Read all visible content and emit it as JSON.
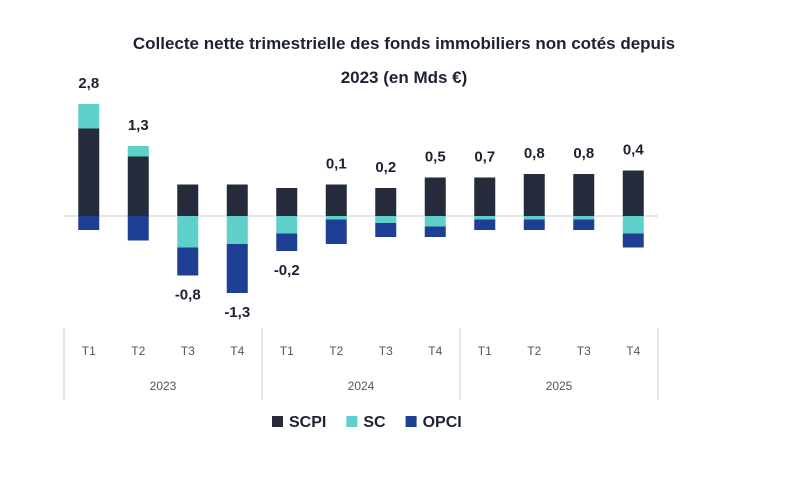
{
  "chart_data": {
    "type": "stacked-bar",
    "title": "Collecte nette trimestrielle des fonds immobiliers non cotés depuis 2023 (en Mds €)",
    "categories": [
      "T1",
      "T2",
      "T3",
      "T4",
      "T1",
      "T2",
      "T3",
      "T4",
      "T1",
      "T2",
      "T3",
      "T4"
    ],
    "groups": [
      "2023",
      "2024",
      "2025"
    ],
    "series": [
      {
        "name": "SCPI",
        "color": "#262b3c",
        "values": [
          2.5,
          1.7,
          0.9,
          0.9,
          0.8,
          0.9,
          0.8,
          1.1,
          1.1,
          1.2,
          1.2,
          1.3
        ]
      },
      {
        "name": "SC",
        "color": "#5fcfca",
        "values": [
          0.7,
          0.3,
          -0.9,
          -0.8,
          -0.5,
          -0.1,
          -0.2,
          -0.3,
          -0.1,
          -0.1,
          -0.1,
          -0.5
        ]
      },
      {
        "name": "OPCI",
        "color": "#1f3f95",
        "values": [
          -0.4,
          -0.7,
          -0.8,
          -1.4,
          -0.5,
          -0.7,
          -0.4,
          -0.3,
          -0.3,
          -0.3,
          -0.3,
          -0.4
        ]
      }
    ],
    "totals": [
      2.8,
      1.3,
      -0.8,
      -1.3,
      -0.2,
      0.1,
      0.2,
      0.5,
      0.7,
      0.8,
      0.8,
      0.4
    ],
    "total_labels": [
      "2,8",
      "1,3",
      "-0,8",
      "-1,3",
      "-0,2",
      "0,1",
      "0,2",
      "0,5",
      "0,7",
      "0,8",
      "0,8",
      "0,4"
    ]
  }
}
